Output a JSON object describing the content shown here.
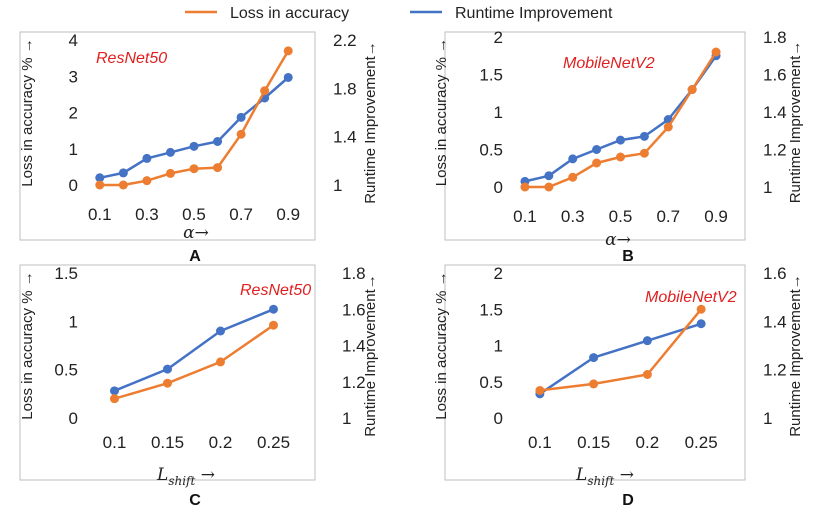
{
  "colors": {
    "loss": "#ED7D31",
    "runtime": "#4472C4",
    "frame": "#BFBFBF",
    "model": "#E02020"
  },
  "legend": [
    {
      "label": "Loss in accuracy",
      "color": "#ED7D31"
    },
    {
      "label": "Runtime Improvement",
      "color": "#4472C4"
    }
  ],
  "chart_data": [
    {
      "type": "line",
      "panel": "A",
      "model_label": "ResNet50",
      "xlabel": "α→",
      "ylabel_left": "Loss in accuracy % →",
      "ylabel_right": "Runtime Improvement→",
      "x": [
        0.1,
        0.2,
        0.3,
        0.4,
        0.5,
        0.6,
        0.7,
        0.8,
        0.9
      ],
      "x_ticks": [
        "0.1",
        "0.3",
        "0.5",
        "0.7",
        "0.9"
      ],
      "x_tick_values": [
        0.1,
        0.3,
        0.5,
        0.7,
        0.9
      ],
      "xlim": [
        0.05,
        0.95
      ],
      "ylim_left": [
        0,
        4
      ],
      "yticks_left": [
        "0",
        "1",
        "2",
        "3",
        "4"
      ],
      "ylim_right": [
        1,
        2.2
      ],
      "yticks_right": [
        "1",
        "1.4",
        "1.8",
        "2.2"
      ],
      "series": [
        {
          "name": "Loss in accuracy",
          "axis": "left",
          "values": [
            0,
            0,
            0.12,
            0.32,
            0.45,
            0.48,
            1.4,
            2.6,
            3.7
          ]
        },
        {
          "name": "Runtime Improvement",
          "axis": "right",
          "values": [
            1.06,
            1.1,
            1.22,
            1.27,
            1.32,
            1.36,
            1.56,
            1.72,
            1.89
          ]
        }
      ]
    },
    {
      "type": "line",
      "panel": "B",
      "model_label": "MobileNetV2",
      "xlabel": "α→",
      "ylabel_left": "Loss in accuracy % →",
      "ylabel_right": "Runtime Improvement→",
      "x": [
        0.1,
        0.2,
        0.3,
        0.4,
        0.5,
        0.6,
        0.7,
        0.8,
        0.9
      ],
      "x_ticks": [
        "0.1",
        "0.3",
        "0.5",
        "0.7",
        "0.9"
      ],
      "x_tick_values": [
        0.1,
        0.3,
        0.5,
        0.7,
        0.9
      ],
      "xlim": [
        0.05,
        0.95
      ],
      "ylim_left": [
        0,
        2
      ],
      "yticks_left": [
        "0",
        "0.5",
        "1",
        "1.5",
        "2"
      ],
      "ylim_right": [
        1,
        1.8
      ],
      "yticks_right": [
        "1",
        "1.2",
        "1.4",
        "1.6",
        "1.8"
      ],
      "series": [
        {
          "name": "Loss in accuracy",
          "axis": "left",
          "values": [
            0,
            0,
            0.13,
            0.32,
            0.4,
            0.45,
            0.8,
            1.3,
            1.8
          ]
        },
        {
          "name": "Runtime Improvement",
          "axis": "right",
          "values": [
            1.03,
            1.06,
            1.15,
            1.2,
            1.25,
            1.27,
            1.36,
            1.52,
            1.7
          ]
        }
      ]
    },
    {
      "type": "line",
      "panel": "C",
      "model_label": "ResNet50",
      "xlabel": "L",
      "xlabel_sub": "shift",
      "xlabel_suffix": " →",
      "ylabel_left": "Loss in accuracy % →",
      "ylabel_right": "Runtime Improvement→",
      "x": [
        0.1,
        0.15,
        0.2,
        0.25
      ],
      "x_ticks": [
        "0.1",
        "0.15",
        "0.2",
        "0.25"
      ],
      "x_tick_values": [
        0.1,
        0.15,
        0.2,
        0.25
      ],
      "xlim": [
        0.075,
        0.275
      ],
      "ylim_left": [
        0,
        1.5
      ],
      "yticks_left": [
        "0",
        "0.5",
        "1",
        "1.5"
      ],
      "ylim_right": [
        1,
        1.8
      ],
      "yticks_right": [
        "1",
        "1.2",
        "1.4",
        "1.6",
        "1.8"
      ],
      "series": [
        {
          "name": "Loss in accuracy",
          "axis": "left",
          "values": [
            0.2,
            0.36,
            0.58,
            0.96
          ]
        },
        {
          "name": "Runtime Improvement",
          "axis": "right",
          "values": [
            1.15,
            1.27,
            1.48,
            1.6
          ]
        }
      ]
    },
    {
      "type": "line",
      "panel": "D",
      "model_label": "MobileNetV2",
      "xlabel": "L",
      "xlabel_sub": "shift",
      "xlabel_suffix": " →",
      "ylabel_left": "Loss in accuracy % →",
      "ylabel_right": "Runtime Improvement→",
      "x": [
        0.1,
        0.15,
        0.2,
        0.25
      ],
      "x_ticks": [
        "0.1",
        "0.15",
        "0.2",
        "0.25"
      ],
      "x_tick_values": [
        0.1,
        0.15,
        0.2,
        0.25
      ],
      "xlim": [
        0.075,
        0.275
      ],
      "ylim_left": [
        0,
        2
      ],
      "yticks_left": [
        "0",
        "0.5",
        "1",
        "1.5",
        "2"
      ],
      "ylim_right": [
        1,
        1.6
      ],
      "yticks_right": [
        "1",
        "1.2",
        "1.4",
        "1.6"
      ],
      "series": [
        {
          "name": "Loss in accuracy",
          "axis": "left",
          "values": [
            0.38,
            0.47,
            0.6,
            1.5
          ]
        },
        {
          "name": "Runtime Improvement",
          "axis": "right",
          "values": [
            1.1,
            1.25,
            1.32,
            1.39
          ]
        }
      ]
    }
  ]
}
